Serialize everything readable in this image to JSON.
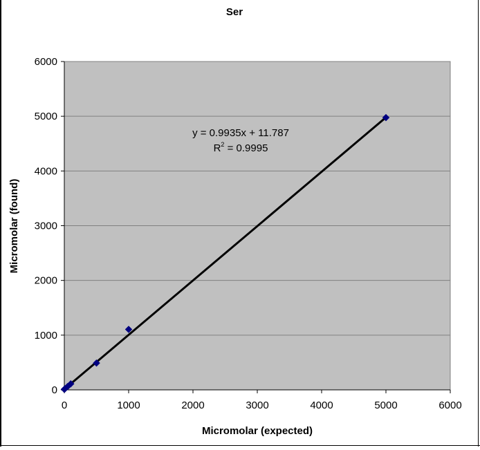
{
  "chart_data": {
    "type": "scatter",
    "title": "Ser",
    "xlabel": "Micromolar (expected)",
    "ylabel": "Micromolar (found)",
    "xlim": [
      0,
      6000
    ],
    "ylim": [
      0,
      6000
    ],
    "x_ticks": [
      0,
      1000,
      2000,
      3000,
      4000,
      5000,
      6000
    ],
    "y_ticks": [
      0,
      1000,
      2000,
      3000,
      4000,
      5000,
      6000
    ],
    "x_tick_labels": [
      "0",
      "1000",
      "2000",
      "3000",
      "4000",
      "5000",
      "6000"
    ],
    "y_tick_labels": [
      "0",
      "1000",
      "2000",
      "3000",
      "4000",
      "5000",
      "6000"
    ],
    "grid": "horizontal",
    "series": [
      {
        "points": [
          {
            "x": 0,
            "y": 10
          },
          {
            "x": 10,
            "y": 20
          },
          {
            "x": 50,
            "y": 60
          },
          {
            "x": 100,
            "y": 110
          },
          {
            "x": 500,
            "y": 490
          },
          {
            "x": 1000,
            "y": 1105
          },
          {
            "x": 5000,
            "y": 4975
          }
        ],
        "marker": "diamond",
        "color": "#000080"
      }
    ],
    "trendline": {
      "slope": 0.9935,
      "intercept": 11.787,
      "x_range": [
        0,
        5000
      ],
      "color": "#000000",
      "equation_label": "y = 0.9935x + 11.787",
      "r2_prefix": "R",
      "r2_sup": "2",
      "r2_suffix": " = 0.9995"
    },
    "colors": {
      "plot_background": "#c0c0c0",
      "gridline": "#808080",
      "marker": "#000080",
      "text": "#000000"
    }
  }
}
